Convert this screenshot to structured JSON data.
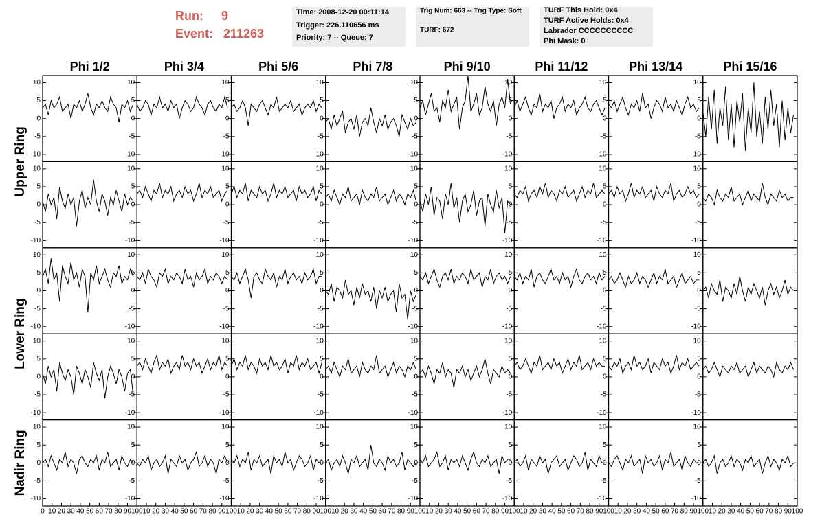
{
  "header": {
    "run_label": "Run:",
    "run": "9",
    "event_label": "Event:",
    "event": "211263"
  },
  "info_boxes": [
    [
      "Time: 2008-12-20 00:11:14",
      "Trigger: 226.110656 ms",
      "Priority: 7 -- Queue: 7"
    ],
    [
      "Trig Num: 663 -- Trig Type: Soft",
      "TURF: 672"
    ],
    [
      "TURF This Hold: 0x4",
      "TURF Active Holds: 0x4",
      "Labrador CCCCCCCCCC",
      "Phi Mask: 0"
    ]
  ],
  "chart_data": {
    "type": "line",
    "color": "#000000",
    "columns": [
      "Phi 1/2",
      "Phi 3/4",
      "Phi 5/6",
      "Phi 7/8",
      "Phi 9/10",
      "Phi 11/12",
      "Phi 13/14",
      "Phi 15/16"
    ],
    "row_labels": [
      "Upper Ring",
      "Lower Ring",
      "Nadir Ring"
    ],
    "xlim": [
      0,
      100
    ],
    "xticks": [
      0,
      10,
      20,
      30,
      40,
      50,
      60,
      70,
      80,
      90,
      100
    ],
    "ylim": [
      -12,
      12
    ],
    "yticks": [
      -10,
      -5,
      0,
      5,
      10
    ],
    "x": [
      0,
      3,
      6,
      9,
      12,
      15,
      18,
      21,
      24,
      27,
      30,
      33,
      36,
      39,
      42,
      45,
      48,
      51,
      54,
      57,
      60,
      63,
      66,
      69,
      72,
      75,
      78,
      81,
      84,
      87,
      90,
      93,
      96
    ],
    "panels": [
      [
        [
          3,
          4,
          1,
          5,
          3,
          4,
          6,
          2,
          3,
          4,
          0,
          4,
          3,
          5,
          2,
          4,
          7,
          3,
          1,
          4,
          3,
          5,
          3,
          2,
          6,
          4,
          3,
          -1,
          4,
          3,
          5,
          2,
          4
        ],
        [
          4,
          2,
          3,
          5,
          4,
          1,
          4,
          3,
          6,
          3,
          4,
          2,
          5,
          3,
          4,
          0,
          3,
          5,
          4,
          2,
          3,
          6,
          4,
          3,
          1,
          4,
          5,
          3,
          2,
          4,
          3,
          6,
          3
        ],
        [
          3,
          4,
          2,
          3,
          5,
          3,
          -2,
          4,
          3,
          2,
          4,
          5,
          3,
          1,
          4,
          3,
          6,
          2,
          3,
          4,
          3,
          5,
          2,
          3,
          4,
          1,
          3,
          4,
          3,
          5,
          2,
          4,
          3
        ],
        [
          -1,
          0,
          -3,
          1,
          -2,
          0,
          2,
          -4,
          -1,
          0,
          -3,
          1,
          -5,
          -1,
          0,
          -2,
          3,
          -1,
          -4,
          0,
          -2,
          1,
          -3,
          -1,
          0,
          -2,
          -5,
          1,
          -1,
          -3,
          0,
          -2,
          -1
        ],
        [
          3,
          5,
          1,
          4,
          7,
          2,
          3,
          -1,
          5,
          3,
          8,
          2,
          4,
          6,
          -3,
          3,
          5,
          12,
          2,
          4,
          7,
          1,
          3,
          9,
          4,
          2,
          5,
          -2,
          4,
          6,
          3,
          11,
          4
        ],
        [
          3,
          5,
          2,
          4,
          6,
          3,
          1,
          4,
          3,
          7,
          2,
          4,
          3,
          5,
          0,
          3,
          4,
          6,
          2,
          4,
          3,
          5,
          1,
          3,
          4,
          6,
          3,
          2,
          4,
          5,
          3,
          1,
          3
        ],
        [
          4,
          3,
          5,
          2,
          4,
          6,
          3,
          1,
          4,
          3,
          5,
          2,
          7,
          3,
          4,
          0,
          3,
          5,
          4,
          2,
          6,
          3,
          4,
          2,
          5,
          3,
          1,
          4,
          6,
          3,
          4,
          2,
          3
        ],
        [
          2,
          -5,
          6,
          -3,
          8,
          -7,
          3,
          -2,
          9,
          -6,
          4,
          -8,
          5,
          -1,
          7,
          -9,
          3,
          -4,
          10,
          -5,
          2,
          -7,
          6,
          -3,
          8,
          -2,
          4,
          -8,
          5,
          -6,
          3,
          -4,
          1
        ]
      ],
      [
        [
          1,
          -2,
          3,
          0,
          2,
          -4,
          5,
          1,
          -1,
          3,
          0,
          2,
          -6,
          1,
          4,
          -1,
          2,
          0,
          7,
          1,
          -2,
          3,
          1,
          -3,
          2,
          0,
          4,
          1,
          -2,
          3,
          0,
          2,
          1
        ],
        [
          3,
          4,
          2,
          5,
          3,
          1,
          4,
          3,
          6,
          2,
          4,
          3,
          5,
          1,
          3,
          4,
          2,
          5,
          3,
          4,
          1,
          3,
          6,
          2,
          4,
          3,
          5,
          2,
          3,
          4,
          1,
          3,
          4
        ],
        [
          3,
          5,
          2,
          4,
          3,
          6,
          1,
          4,
          3,
          2,
          5,
          3,
          4,
          1,
          3,
          6,
          2,
          4,
          3,
          5,
          2,
          3,
          4,
          1,
          5,
          3,
          4,
          2,
          3,
          5,
          1,
          4,
          3
        ],
        [
          2,
          3,
          1,
          4,
          2,
          0,
          3,
          2,
          5,
          1,
          2,
          3,
          0,
          4,
          2,
          1,
          3,
          2,
          5,
          1,
          2,
          3,
          0,
          2,
          4,
          1,
          3,
          2,
          0,
          3,
          2,
          4,
          1
        ],
        [
          1,
          -2,
          3,
          0,
          5,
          -3,
          2,
          1,
          -4,
          3,
          0,
          6,
          -1,
          2,
          -5,
          1,
          3,
          -2,
          0,
          4,
          -3,
          1,
          2,
          -6,
          3,
          0,
          -2,
          4,
          -1,
          2,
          -8,
          1,
          0
        ],
        [
          3,
          2,
          4,
          3,
          5,
          1,
          3,
          4,
          2,
          5,
          3,
          6,
          2,
          4,
          3,
          1,
          4,
          3,
          5,
          2,
          3,
          4,
          1,
          3,
          5,
          2,
          4,
          3,
          6,
          2,
          3,
          4,
          3
        ],
        [
          3,
          4,
          2,
          5,
          3,
          4,
          1,
          3,
          6,
          2,
          4,
          3,
          5,
          2,
          3,
          4,
          1,
          5,
          3,
          2,
          4,
          3,
          6,
          1,
          3,
          4,
          2,
          3,
          5,
          3,
          4,
          2,
          3
        ],
        [
          2,
          1,
          3,
          2,
          0,
          4,
          2,
          1,
          3,
          2,
          5,
          1,
          2,
          3,
          0,
          2,
          4,
          1,
          3,
          2,
          1,
          6,
          2,
          0,
          3,
          2,
          1,
          4,
          2,
          3,
          1,
          2,
          2
        ]
      ],
      [
        [
          4,
          6,
          2,
          9,
          3,
          5,
          -3,
          7,
          4,
          2,
          8,
          3,
          5,
          1,
          6,
          4,
          -6,
          5,
          3,
          7,
          2,
          4,
          6,
          3,
          1,
          5,
          4,
          7,
          2,
          4,
          3,
          6,
          4
        ],
        [
          4,
          3,
          5,
          2,
          6,
          4,
          3,
          1,
          5,
          4,
          6,
          2,
          4,
          3,
          5,
          4,
          2,
          6,
          3,
          4,
          1,
          5,
          3,
          4,
          6,
          2,
          4,
          3,
          5,
          4,
          2,
          4,
          3
        ],
        [
          4,
          3,
          5,
          2,
          4,
          6,
          3,
          -2,
          4,
          5,
          3,
          2,
          6,
          4,
          3,
          5,
          1,
          4,
          3,
          6,
          2,
          4,
          5,
          3,
          4,
          2,
          5,
          3,
          4,
          6,
          2,
          4,
          4
        ],
        [
          0,
          -1,
          2,
          -3,
          1,
          0,
          -2,
          3,
          -1,
          0,
          -4,
          1,
          -2,
          2,
          -1,
          0,
          -3,
          1,
          -5,
          0,
          -2,
          1,
          -3,
          -1,
          0,
          -6,
          2,
          -2,
          -1,
          -8,
          0,
          -3,
          -1
        ],
        [
          4,
          3,
          5,
          2,
          4,
          6,
          3,
          1,
          4,
          5,
          3,
          6,
          2,
          4,
          3,
          5,
          4,
          2,
          6,
          3,
          4,
          5,
          1,
          4,
          3,
          6,
          2,
          4,
          5,
          3,
          4,
          2,
          4
        ],
        [
          4,
          3,
          5,
          2,
          4,
          3,
          6,
          1,
          4,
          5,
          3,
          2,
          4,
          6,
          3,
          4,
          2,
          5,
          3,
          4,
          1,
          4,
          6,
          3,
          2,
          4,
          5,
          3,
          4,
          2,
          5,
          3,
          4
        ],
        [
          3,
          4,
          2,
          3,
          5,
          3,
          1,
          4,
          2,
          3,
          5,
          2,
          4,
          3,
          1,
          3,
          5,
          2,
          4,
          3,
          6,
          2,
          3,
          4,
          1,
          3,
          5,
          2,
          3,
          4,
          2,
          3,
          3
        ],
        [
          0,
          1,
          -2,
          2,
          0,
          -1,
          3,
          -3,
          1,
          0,
          -2,
          2,
          -1,
          4,
          0,
          -3,
          1,
          -1,
          2,
          0,
          -2,
          1,
          -4,
          0,
          2,
          -1,
          1,
          -2,
          0,
          3,
          -1,
          1,
          0
        ]
      ],
      [
        [
          1,
          -2,
          3,
          0,
          2,
          -4,
          4,
          1,
          -1,
          2,
          0,
          -5,
          3,
          1,
          -2,
          2,
          0,
          -3,
          4,
          1,
          -1,
          2,
          -6,
          0,
          3,
          1,
          -2,
          2,
          0,
          -4,
          1,
          2,
          -5
        ],
        [
          3,
          4,
          2,
          5,
          3,
          1,
          4,
          6,
          2,
          4,
          3,
          5,
          1,
          3,
          4,
          2,
          6,
          3,
          4,
          2,
          5,
          3,
          4,
          1,
          3,
          5,
          2,
          4,
          3,
          6,
          2,
          4,
          3
        ],
        [
          3,
          5,
          2,
          4,
          3,
          6,
          2,
          4,
          3,
          1,
          5,
          3,
          4,
          2,
          6,
          3,
          4,
          2,
          3,
          5,
          1,
          4,
          3,
          6,
          2,
          4,
          3,
          5,
          2,
          3,
          4,
          1,
          4
        ],
        [
          2,
          3,
          1,
          4,
          2,
          0,
          3,
          2,
          5,
          1,
          2,
          3,
          0,
          4,
          2,
          1,
          3,
          2,
          6,
          1,
          2,
          3,
          0,
          2,
          4,
          1,
          3,
          2,
          0,
          3,
          2,
          4,
          2
        ],
        [
          1,
          2,
          0,
          3,
          1,
          -2,
          2,
          1,
          4,
          0,
          2,
          1,
          -3,
          2,
          1,
          3,
          0,
          2,
          -1,
          1,
          3,
          0,
          2,
          5,
          1,
          -2,
          2,
          1,
          0,
          3,
          1,
          2,
          1
        ],
        [
          3,
          4,
          2,
          3,
          5,
          3,
          1,
          4,
          3,
          6,
          2,
          3,
          4,
          2,
          5,
          3,
          4,
          1,
          3,
          5,
          2,
          4,
          3,
          6,
          2,
          3,
          4,
          2,
          5,
          3,
          4,
          3,
          3
        ],
        [
          3,
          2,
          4,
          3,
          5,
          1,
          3,
          4,
          2,
          6,
          3,
          4,
          2,
          3,
          5,
          1,
          4,
          3,
          2,
          5,
          3,
          4,
          1,
          3,
          6,
          2,
          4,
          3,
          5,
          2,
          3,
          4,
          3
        ],
        [
          2,
          3,
          1,
          2,
          4,
          2,
          0,
          3,
          2,
          1,
          3,
          2,
          4,
          1,
          2,
          3,
          0,
          2,
          4,
          1,
          3,
          2,
          1,
          3,
          2,
          0,
          4,
          2,
          1,
          3,
          2,
          4,
          2
        ]
      ],
      [
        [
          0,
          1,
          -1,
          2,
          0,
          -2,
          1,
          0,
          3,
          -1,
          1,
          0,
          -3,
          1,
          2,
          0,
          -1,
          1,
          0,
          2,
          -2,
          1,
          0,
          3,
          -1,
          0,
          1,
          -2,
          2,
          0,
          -1,
          1,
          0
        ],
        [
          0,
          -1,
          1,
          0,
          2,
          -2,
          0,
          1,
          -1,
          0,
          2,
          -3,
          1,
          0,
          -1,
          2,
          0,
          1,
          -2,
          0,
          1,
          3,
          -1,
          0,
          2,
          -1,
          1,
          0,
          -3,
          1,
          0,
          2,
          0
        ],
        [
          1,
          0,
          2,
          -1,
          1,
          0,
          3,
          -2,
          1,
          0,
          2,
          -1,
          0,
          1,
          -3,
          2,
          0,
          1,
          -1,
          3,
          0,
          1,
          -2,
          0,
          2,
          1,
          -1,
          0,
          2,
          -2,
          1,
          0,
          1
        ],
        [
          0,
          1,
          -2,
          0,
          1,
          -1,
          2,
          0,
          -3,
          1,
          0,
          2,
          -1,
          0,
          1,
          -2,
          5,
          0,
          -1,
          1,
          0,
          -2,
          2,
          0,
          1,
          -1,
          0,
          3,
          -2,
          1,
          0,
          -1,
          0
        ],
        [
          1,
          0,
          2,
          -1,
          0,
          1,
          3,
          -1,
          0,
          2,
          -2,
          1,
          0,
          1,
          -1,
          2,
          0,
          -2,
          1,
          3,
          0,
          -1,
          1,
          0,
          2,
          -1,
          0,
          1,
          -3,
          2,
          0,
          1,
          1
        ],
        [
          0,
          1,
          -1,
          0,
          2,
          -2,
          1,
          0,
          -1,
          2,
          0,
          1,
          -3,
          0,
          1,
          2,
          -1,
          0,
          1,
          -2,
          0,
          2,
          1,
          -1,
          0,
          3,
          -2,
          1,
          0,
          -1,
          2,
          0,
          0
        ],
        [
          0,
          -1,
          1,
          2,
          0,
          -2,
          1,
          0,
          2,
          -1,
          0,
          1,
          -3,
          2,
          0,
          1,
          -1,
          0,
          2,
          -2,
          1,
          0,
          3,
          -1,
          0,
          1,
          -2,
          2,
          0,
          -1,
          1,
          0,
          0
        ],
        [
          0,
          1,
          -1,
          0,
          2,
          -3,
          0,
          1,
          -1,
          0,
          2,
          -1,
          1,
          0,
          -2,
          1,
          0,
          2,
          -1,
          0,
          1,
          -3,
          0,
          2,
          -1,
          1,
          0,
          -2,
          1,
          0,
          2,
          -1,
          0
        ]
      ]
    ]
  }
}
